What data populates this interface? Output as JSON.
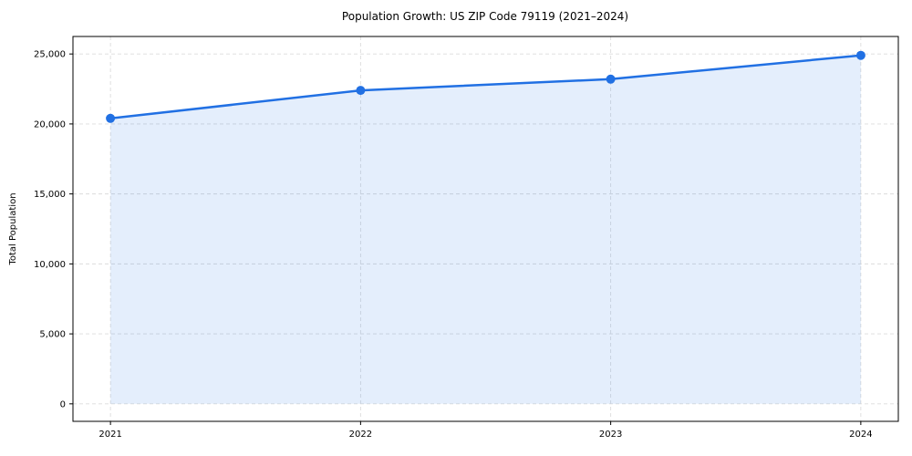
{
  "chart_data": {
    "type": "line",
    "title": "Population Growth: US ZIP Code 79119 (2021–2024)",
    "xlabel": "",
    "ylabel": "Total Population",
    "x": [
      2021,
      2022,
      2023,
      2024
    ],
    "series": [
      {
        "name": "Total Population",
        "values": [
          20400,
          22400,
          23200,
          24900
        ]
      }
    ],
    "x_tick_labels": [
      "2021",
      "2022",
      "2023",
      "2024"
    ],
    "y_ticks": [
      0,
      5000,
      10000,
      15000,
      20000,
      25000
    ],
    "y_tick_labels": [
      "0",
      "5,000",
      "10,000",
      "15,000",
      "20,000",
      "25,000"
    ],
    "xlim": [
      2020.85,
      2024.15
    ],
    "ylim": [
      -1250,
      26250
    ],
    "grid": true,
    "grid_style": "dashed",
    "legend": "none",
    "marker": "circle",
    "area_fill_baseline": 0,
    "colors": {
      "line": "#2170e3",
      "marker": "#2170e3",
      "fill": "#2170e3",
      "fill_opacity": 0.12,
      "grid": "#dcdcdc",
      "axis": "#000000",
      "text": "#000000",
      "background": "#ffffff"
    }
  }
}
